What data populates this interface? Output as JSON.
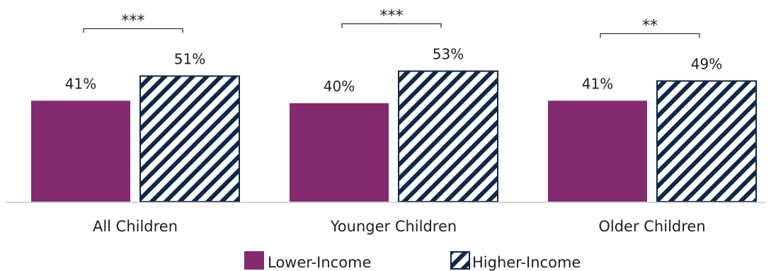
{
  "chart_data": {
    "type": "bar",
    "categories": [
      "All Children",
      "Younger Children",
      "Older Children"
    ],
    "series": [
      {
        "name": "Lower-Income",
        "values": [
          41,
          40,
          41
        ],
        "labels": [
          "41%",
          "40%",
          "41%"
        ]
      },
      {
        "name": "Higher-Income",
        "values": [
          51,
          53,
          49
        ],
        "labels": [
          "51%",
          "53%",
          "49%"
        ]
      }
    ],
    "significance": [
      "***",
      "***",
      "**"
    ],
    "ylim": [
      0,
      60
    ],
    "legend_position": "bottom",
    "colors": {
      "lower": "#832b6e",
      "higher_stripe": "#0f2846",
      "higher_background": "#ffffff"
    }
  }
}
